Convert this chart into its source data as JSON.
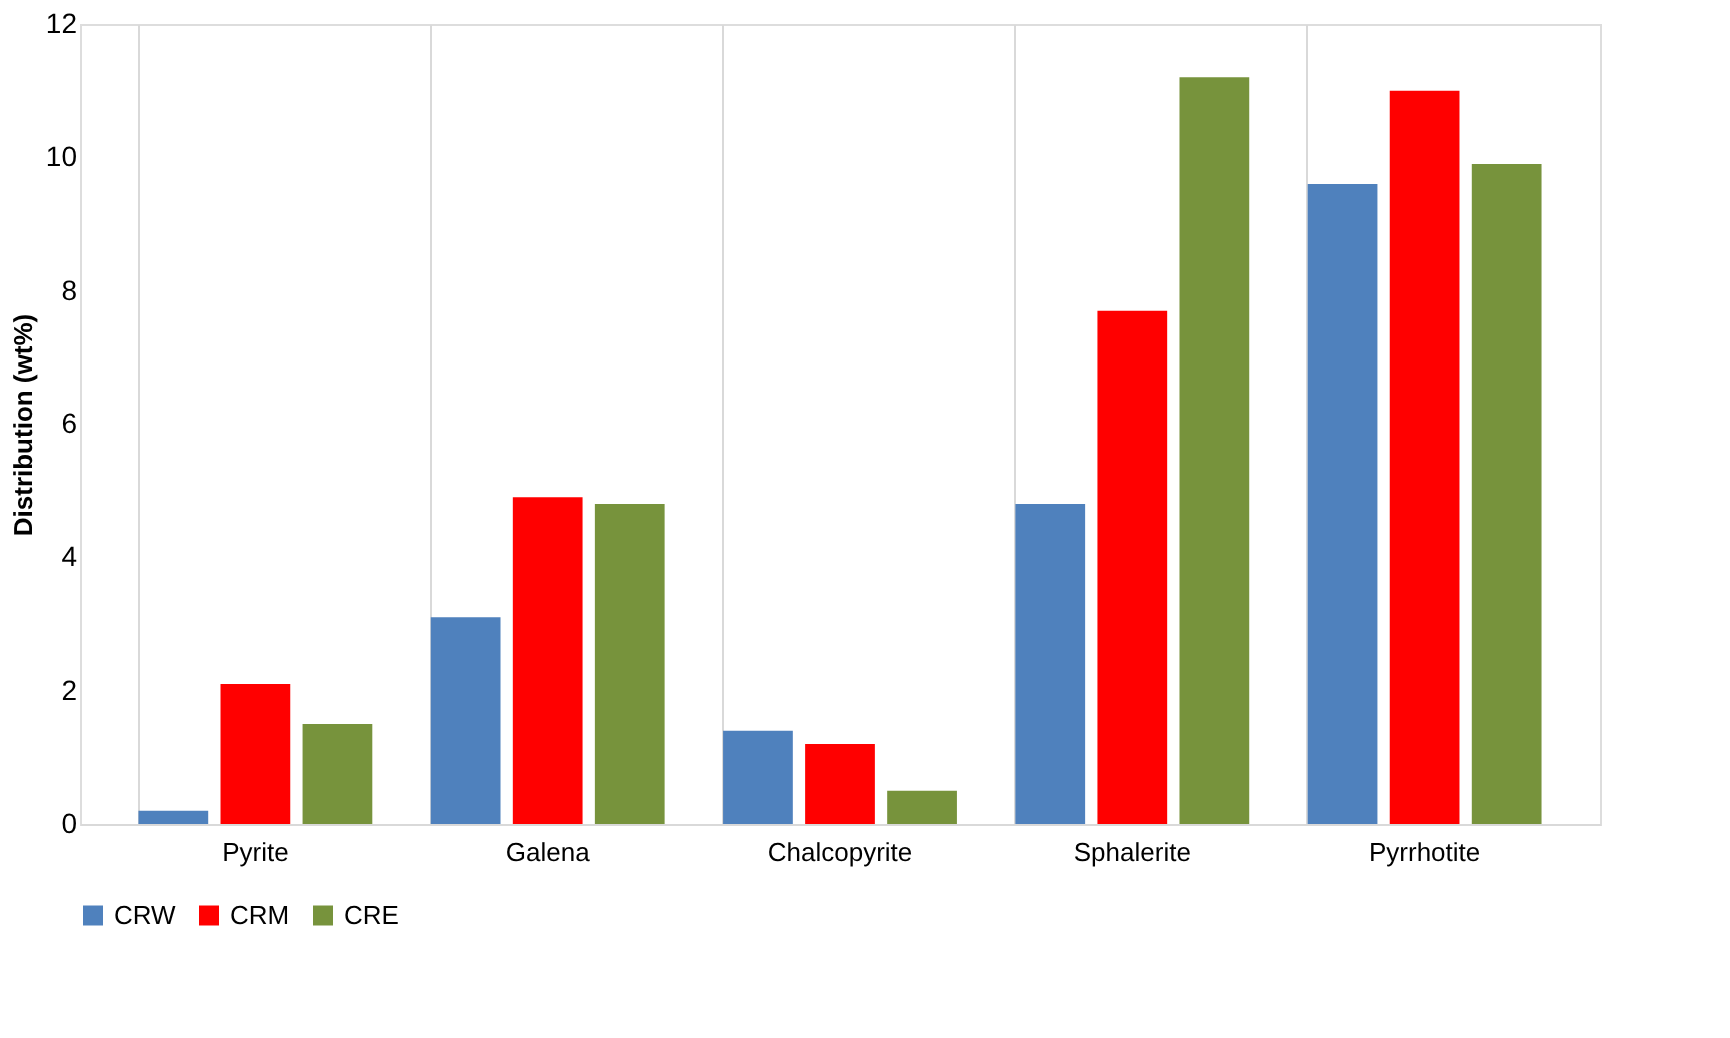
{
  "chart_data": {
    "type": "bar",
    "ylabel": "Distribution (wt%)",
    "categories": [
      "Pyrite",
      "Galena",
      "Chalcopyrite",
      "Sphalerite",
      "Pyrrhotite"
    ],
    "series": [
      {
        "name": "CRW",
        "color": "#4f81bd",
        "values": [
          0.2,
          3.1,
          1.4,
          4.8,
          9.6
        ]
      },
      {
        "name": "CRM",
        "color": "#ff0000",
        "values": [
          2.1,
          4.9,
          1.2,
          7.7,
          11.0
        ]
      },
      {
        "name": "CRE",
        "color": "#77933c",
        "values": [
          1.5,
          4.8,
          0.5,
          11.2,
          9.9
        ]
      }
    ],
    "ylim": [
      0,
      12
    ],
    "yticks": [
      0,
      2,
      4,
      6,
      8,
      10,
      12
    ],
    "grid": "x",
    "legend": "bottom"
  }
}
